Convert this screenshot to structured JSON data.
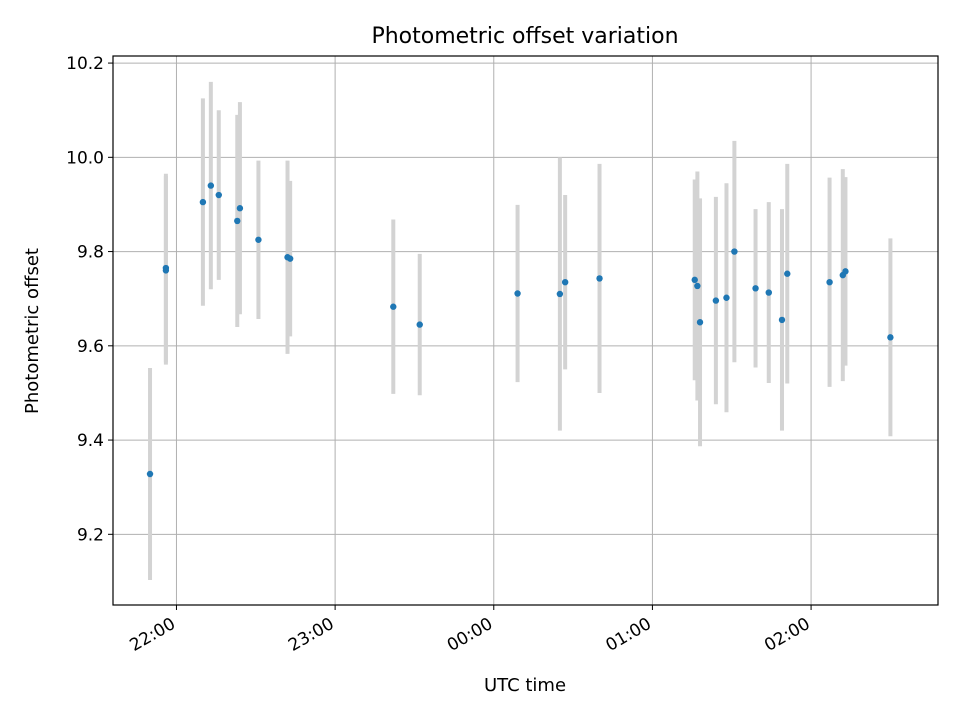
{
  "chart_data": {
    "type": "scatter",
    "title": "Photometric offset variation",
    "xlabel": "UTC time",
    "ylabel": "Photometric offset",
    "xlim": [
      "21:36",
      "02:48"
    ],
    "ylim": [
      9.05,
      10.215
    ],
    "grid": true,
    "colors": {
      "point": "#1f77b4",
      "errorbar": "#d3d3d3",
      "grid": "#b0b0b0"
    },
    "x_ticks": [
      "22:00",
      "23:00",
      "00:00",
      "01:00",
      "02:00"
    ],
    "y_ticks": [
      "9.2",
      "9.4",
      "9.6",
      "9.8",
      "10.0",
      "10.2"
    ],
    "series": [
      {
        "errorbar": "symmetric",
        "points": [
          {
            "x": "21:50",
            "y": 9.328,
            "err": 0.225
          },
          {
            "x": "21:56",
            "y": 9.76,
            "err": 0.2
          },
          {
            "x": "21:56",
            "y": 9.765,
            "err": 0.2
          },
          {
            "x": "22:10",
            "y": 9.905,
            "err": 0.22
          },
          {
            "x": "22:13",
            "y": 9.94,
            "err": 0.22
          },
          {
            "x": "22:16",
            "y": 9.92,
            "err": 0.18
          },
          {
            "x": "22:23",
            "y": 9.865,
            "err": 0.225
          },
          {
            "x": "22:24",
            "y": 9.892,
            "err": 0.225
          },
          {
            "x": "22:31",
            "y": 9.825,
            "err": 0.168
          },
          {
            "x": "22:42",
            "y": 9.788,
            "err": 0.205
          },
          {
            "x": "22:43",
            "y": 9.785,
            "err": 0.165
          },
          {
            "x": "23:22",
            "y": 9.683,
            "err": 0.185
          },
          {
            "x": "23:32",
            "y": 9.645,
            "err": 0.15
          },
          {
            "x": "00:09",
            "y": 9.711,
            "err": 0.188
          },
          {
            "x": "00:25",
            "y": 9.71,
            "err": 0.29
          },
          {
            "x": "00:27",
            "y": 9.735,
            "err": 0.185
          },
          {
            "x": "00:40",
            "y": 9.743,
            "err": 0.243
          },
          {
            "x": "01:16",
            "y": 9.74,
            "err": 0.213
          },
          {
            "x": "01:17",
            "y": 9.727,
            "err": 0.243
          },
          {
            "x": "01:18",
            "y": 9.65,
            "err": 0.263
          },
          {
            "x": "01:24",
            "y": 9.696,
            "err": 0.22
          },
          {
            "x": "01:28",
            "y": 9.702,
            "err": 0.243
          },
          {
            "x": "01:31",
            "y": 9.8,
            "err": 0.235
          },
          {
            "x": "01:39",
            "y": 9.722,
            "err": 0.168
          },
          {
            "x": "01:44",
            "y": 9.713,
            "err": 0.192
          },
          {
            "x": "01:49",
            "y": 9.655,
            "err": 0.235
          },
          {
            "x": "01:51",
            "y": 9.753,
            "err": 0.233
          },
          {
            "x": "02:07",
            "y": 9.735,
            "err": 0.222
          },
          {
            "x": "02:12",
            "y": 9.75,
            "err": 0.225
          },
          {
            "x": "02:13",
            "y": 9.758,
            "err": 0.2
          },
          {
            "x": "02:30",
            "y": 9.618,
            "err": 0.21
          }
        ]
      }
    ]
  }
}
